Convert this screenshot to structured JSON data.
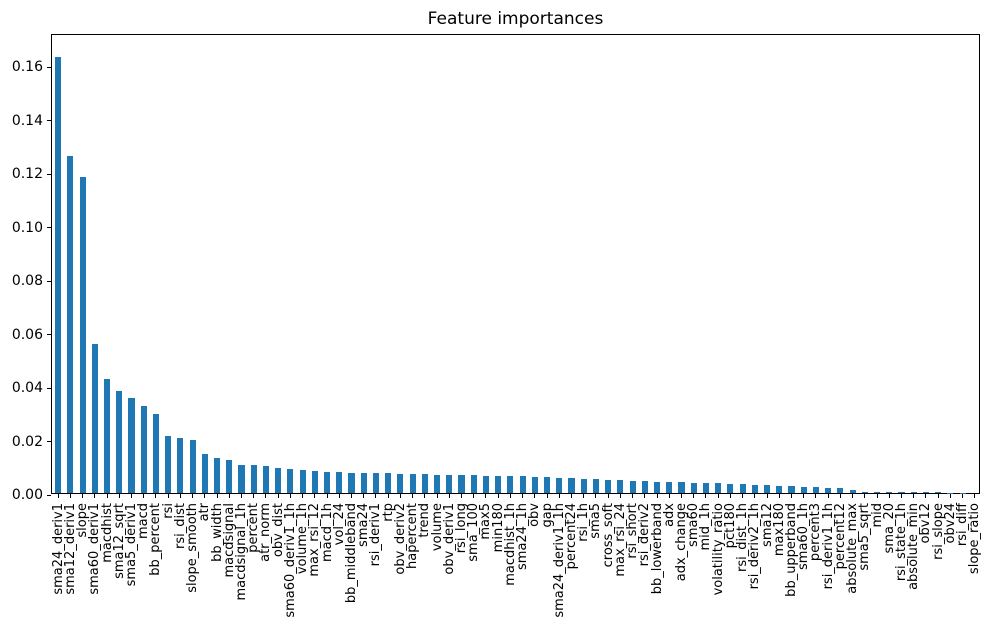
{
  "chart_data": {
    "type": "bar",
    "title": "Feature importances",
    "xlabel": "",
    "ylabel": "",
    "ylim": [
      0,
      0.172
    ],
    "yticks": [
      0.0,
      0.02,
      0.04,
      0.06,
      0.08,
      0.1,
      0.12,
      0.14,
      0.16
    ],
    "grid": false,
    "legend": "none",
    "bar_color": "#1f77b4",
    "background_color": "#ffffff",
    "categories": [
      "sma24_deriv1",
      "sma12_deriv1",
      "slope",
      "sma60_deriv1",
      "macdhist",
      "sma12_sqrt",
      "sma5_deriv1",
      "macd",
      "bb_percent",
      "rsi",
      "rsi_dist",
      "slope_smooth",
      "atr",
      "bb_width",
      "macdsignal",
      "macdsignal_1h",
      "percent",
      "atr_norm",
      "obv_dist",
      "sma60_deriv1_1h",
      "volume_1h",
      "max_rsi_12",
      "macd_1h",
      "vol_24",
      "bb_middleband",
      "sma24",
      "rsi_deriv1",
      "rtp",
      "obv_deriv2",
      "hapercent",
      "trend",
      "volume",
      "obv_deriv1",
      "rsi_long",
      "sma_100",
      "max5",
      "min180",
      "macdhist_1h",
      "sma24_1h",
      "obv",
      "gap",
      "sma24_deriv1_1h",
      "percent24",
      "rsi_1h",
      "sma5",
      "cross_soft",
      "max_rsi_24",
      "rsi_short",
      "rsi_deriv2",
      "bb_lowerband",
      "adx",
      "adx_change",
      "sma60",
      "mid_1h",
      "volatility_ratio",
      "pct180",
      "rsi_dist_1h",
      "rsi_deriv2_1h",
      "sma12",
      "max180",
      "bb_upperband",
      "sma60_1h",
      "percent3",
      "rsi_deriv1_1h",
      "percent12",
      "absolute_max",
      "sma5_sqrt",
      "mid",
      "sma_20",
      "rsi_state_1h",
      "absolute_min",
      "obv12",
      "rsi_slope",
      "obv24",
      "rsi_diff",
      "slope_ratio"
    ],
    "values": [
      0.163,
      0.126,
      0.118,
      0.0557,
      0.0427,
      0.0382,
      0.0356,
      0.0326,
      0.0297,
      0.0215,
      0.0205,
      0.02,
      0.0147,
      0.0131,
      0.0123,
      0.0106,
      0.0104,
      0.0101,
      0.0094,
      0.0088,
      0.0086,
      0.0082,
      0.008,
      0.0078,
      0.0076,
      0.0075,
      0.0074,
      0.0073,
      0.0072,
      0.0071,
      0.007,
      0.0069,
      0.0068,
      0.0067,
      0.0066,
      0.0065,
      0.0064,
      0.0063,
      0.0062,
      0.0061,
      0.006,
      0.0058,
      0.0056,
      0.0054,
      0.0052,
      0.005,
      0.0048,
      0.0046,
      0.0044,
      0.0042,
      0.0041,
      0.004,
      0.0039,
      0.0037,
      0.0036,
      0.0035,
      0.0033,
      0.0031,
      0.0029,
      0.0027,
      0.0025,
      0.0023,
      0.0021,
      0.0019,
      0.0017,
      0.0012,
      0.0005,
      0.0004,
      0.0003,
      0.0003,
      0.0002,
      0.0002,
      0.0002,
      0.0001,
      0.0001,
      0.0
    ]
  }
}
